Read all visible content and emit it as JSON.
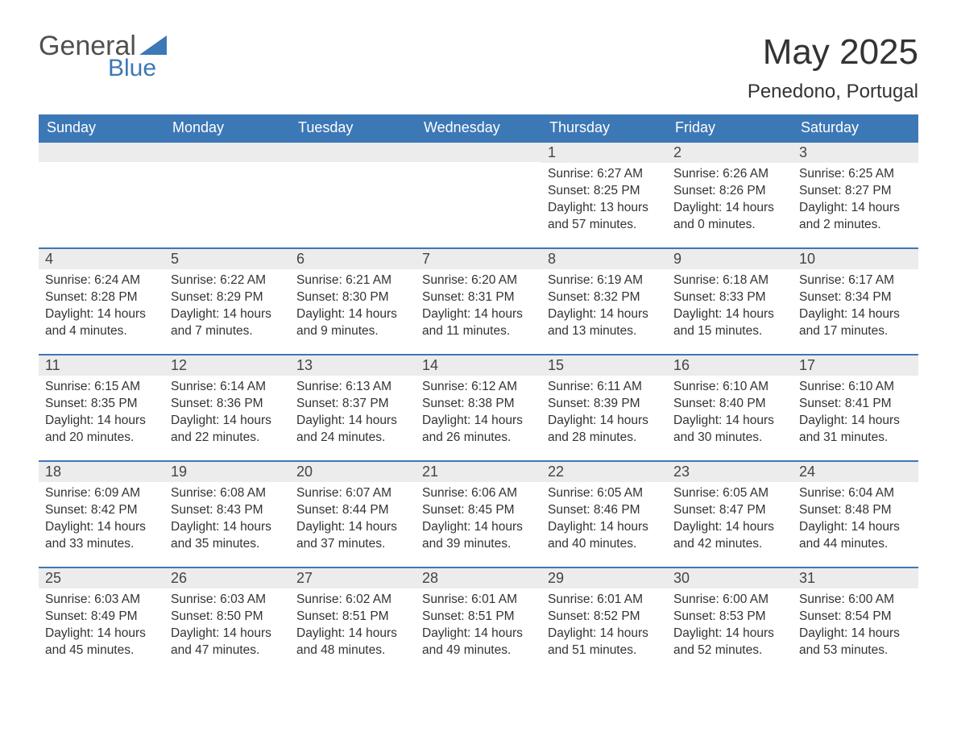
{
  "brand": {
    "word1": "General",
    "word2": "Blue",
    "accent_color": "#3d78b6"
  },
  "title": "May 2025",
  "location": "Penedono, Portugal",
  "colors": {
    "header_bg": "#3d78b6",
    "header_text": "#ffffff",
    "daynum_bg": "#ececec",
    "daynum_border": "#3d78b6",
    "body_text": "#333333",
    "page_bg": "#ffffff"
  },
  "typography": {
    "title_fontsize": 44,
    "location_fontsize": 24,
    "header_fontsize": 18,
    "cell_fontsize": 15.5
  },
  "weekdays": [
    "Sunday",
    "Monday",
    "Tuesday",
    "Wednesday",
    "Thursday",
    "Friday",
    "Saturday"
  ],
  "weeks": [
    [
      null,
      null,
      null,
      null,
      {
        "n": "1",
        "sunrise": "6:27 AM",
        "sunset": "8:25 PM",
        "daylight": "13 hours and 57 minutes."
      },
      {
        "n": "2",
        "sunrise": "6:26 AM",
        "sunset": "8:26 PM",
        "daylight": "14 hours and 0 minutes."
      },
      {
        "n": "3",
        "sunrise": "6:25 AM",
        "sunset": "8:27 PM",
        "daylight": "14 hours and 2 minutes."
      }
    ],
    [
      {
        "n": "4",
        "sunrise": "6:24 AM",
        "sunset": "8:28 PM",
        "daylight": "14 hours and 4 minutes."
      },
      {
        "n": "5",
        "sunrise": "6:22 AM",
        "sunset": "8:29 PM",
        "daylight": "14 hours and 7 minutes."
      },
      {
        "n": "6",
        "sunrise": "6:21 AM",
        "sunset": "8:30 PM",
        "daylight": "14 hours and 9 minutes."
      },
      {
        "n": "7",
        "sunrise": "6:20 AM",
        "sunset": "8:31 PM",
        "daylight": "14 hours and 11 minutes."
      },
      {
        "n": "8",
        "sunrise": "6:19 AM",
        "sunset": "8:32 PM",
        "daylight": "14 hours and 13 minutes."
      },
      {
        "n": "9",
        "sunrise": "6:18 AM",
        "sunset": "8:33 PM",
        "daylight": "14 hours and 15 minutes."
      },
      {
        "n": "10",
        "sunrise": "6:17 AM",
        "sunset": "8:34 PM",
        "daylight": "14 hours and 17 minutes."
      }
    ],
    [
      {
        "n": "11",
        "sunrise": "6:15 AM",
        "sunset": "8:35 PM",
        "daylight": "14 hours and 20 minutes."
      },
      {
        "n": "12",
        "sunrise": "6:14 AM",
        "sunset": "8:36 PM",
        "daylight": "14 hours and 22 minutes."
      },
      {
        "n": "13",
        "sunrise": "6:13 AM",
        "sunset": "8:37 PM",
        "daylight": "14 hours and 24 minutes."
      },
      {
        "n": "14",
        "sunrise": "6:12 AM",
        "sunset": "8:38 PM",
        "daylight": "14 hours and 26 minutes."
      },
      {
        "n": "15",
        "sunrise": "6:11 AM",
        "sunset": "8:39 PM",
        "daylight": "14 hours and 28 minutes."
      },
      {
        "n": "16",
        "sunrise": "6:10 AM",
        "sunset": "8:40 PM",
        "daylight": "14 hours and 30 minutes."
      },
      {
        "n": "17",
        "sunrise": "6:10 AM",
        "sunset": "8:41 PM",
        "daylight": "14 hours and 31 minutes."
      }
    ],
    [
      {
        "n": "18",
        "sunrise": "6:09 AM",
        "sunset": "8:42 PM",
        "daylight": "14 hours and 33 minutes."
      },
      {
        "n": "19",
        "sunrise": "6:08 AM",
        "sunset": "8:43 PM",
        "daylight": "14 hours and 35 minutes."
      },
      {
        "n": "20",
        "sunrise": "6:07 AM",
        "sunset": "8:44 PM",
        "daylight": "14 hours and 37 minutes."
      },
      {
        "n": "21",
        "sunrise": "6:06 AM",
        "sunset": "8:45 PM",
        "daylight": "14 hours and 39 minutes."
      },
      {
        "n": "22",
        "sunrise": "6:05 AM",
        "sunset": "8:46 PM",
        "daylight": "14 hours and 40 minutes."
      },
      {
        "n": "23",
        "sunrise": "6:05 AM",
        "sunset": "8:47 PM",
        "daylight": "14 hours and 42 minutes."
      },
      {
        "n": "24",
        "sunrise": "6:04 AM",
        "sunset": "8:48 PM",
        "daylight": "14 hours and 44 minutes."
      }
    ],
    [
      {
        "n": "25",
        "sunrise": "6:03 AM",
        "sunset": "8:49 PM",
        "daylight": "14 hours and 45 minutes."
      },
      {
        "n": "26",
        "sunrise": "6:03 AM",
        "sunset": "8:50 PM",
        "daylight": "14 hours and 47 minutes."
      },
      {
        "n": "27",
        "sunrise": "6:02 AM",
        "sunset": "8:51 PM",
        "daylight": "14 hours and 48 minutes."
      },
      {
        "n": "28",
        "sunrise": "6:01 AM",
        "sunset": "8:51 PM",
        "daylight": "14 hours and 49 minutes."
      },
      {
        "n": "29",
        "sunrise": "6:01 AM",
        "sunset": "8:52 PM",
        "daylight": "14 hours and 51 minutes."
      },
      {
        "n": "30",
        "sunrise": "6:00 AM",
        "sunset": "8:53 PM",
        "daylight": "14 hours and 52 minutes."
      },
      {
        "n": "31",
        "sunrise": "6:00 AM",
        "sunset": "8:54 PM",
        "daylight": "14 hours and 53 minutes."
      }
    ]
  ],
  "labels": {
    "sunrise": "Sunrise:",
    "sunset": "Sunset:",
    "daylight": "Daylight:"
  }
}
